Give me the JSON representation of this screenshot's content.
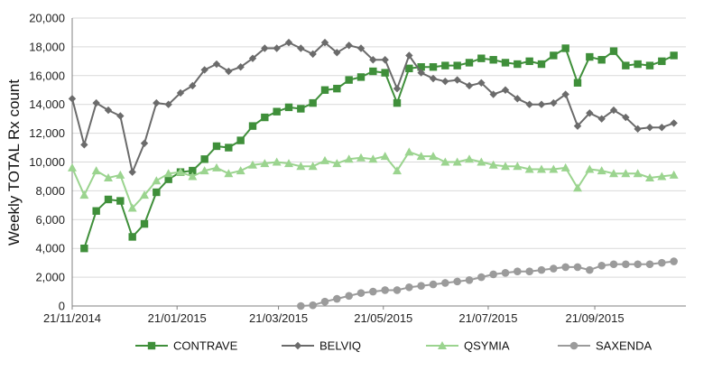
{
  "chart_data": {
    "type": "line",
    "xlabel": "",
    "ylabel": "Weekly TOTAL Rx count",
    "ylim": [
      0,
      20000
    ],
    "yticks": [
      "0",
      "2,000",
      "4,000",
      "6,000",
      "8,000",
      "10,000",
      "12,000",
      "14,000",
      "16,000",
      "18,000",
      "20,000"
    ],
    "xrange": [
      "2014-11-21",
      "2015-11-13"
    ],
    "xtick_labels": [
      {
        "date": "2014-11-21",
        "label": "21/11/2014"
      },
      {
        "date": "2015-01-21",
        "label": "21/01/2015"
      },
      {
        "date": "2015-03-21",
        "label": "21/03/2015"
      },
      {
        "date": "2015-05-21",
        "label": "21/05/2015"
      },
      {
        "date": "2015-07-21",
        "label": "21/07/2015"
      },
      {
        "date": "2015-09-21",
        "label": "21/09/2015"
      }
    ],
    "grid": "horizontal",
    "legend_position": "bottom",
    "series": [
      {
        "name": "CONTRAVE",
        "color": "#3f8f3a",
        "marker": "square",
        "points": [
          [
            "2014-11-28",
            4000
          ],
          [
            "2014-12-05",
            6600
          ],
          [
            "2014-12-12",
            7400
          ],
          [
            "2014-12-19",
            7300
          ],
          [
            "2014-12-26",
            4800
          ],
          [
            "2015-01-02",
            5700
          ],
          [
            "2015-01-09",
            7900
          ],
          [
            "2015-01-16",
            8800
          ],
          [
            "2015-01-23",
            9300
          ],
          [
            "2015-01-30",
            9400
          ],
          [
            "2015-02-06",
            10200
          ],
          [
            "2015-02-13",
            11100
          ],
          [
            "2015-02-20",
            11000
          ],
          [
            "2015-02-27",
            11500
          ],
          [
            "2015-03-06",
            12500
          ],
          [
            "2015-03-13",
            13100
          ],
          [
            "2015-03-20",
            13500
          ],
          [
            "2015-03-27",
            13800
          ],
          [
            "2015-04-03",
            13700
          ],
          [
            "2015-04-10",
            14100
          ],
          [
            "2015-04-17",
            15000
          ],
          [
            "2015-04-24",
            15100
          ],
          [
            "2015-05-01",
            15700
          ],
          [
            "2015-05-08",
            15900
          ],
          [
            "2015-05-15",
            16300
          ],
          [
            "2015-05-22",
            16200
          ],
          [
            "2015-05-29",
            14100
          ],
          [
            "2015-06-05",
            16500
          ],
          [
            "2015-06-12",
            16600
          ],
          [
            "2015-06-19",
            16600
          ],
          [
            "2015-06-26",
            16700
          ],
          [
            "2015-07-03",
            16700
          ],
          [
            "2015-07-10",
            16900
          ],
          [
            "2015-07-17",
            17200
          ],
          [
            "2015-07-24",
            17100
          ],
          [
            "2015-07-31",
            16900
          ],
          [
            "2015-08-07",
            16800
          ],
          [
            "2015-08-14",
            17000
          ],
          [
            "2015-08-21",
            16800
          ],
          [
            "2015-08-28",
            17400
          ],
          [
            "2015-09-04",
            17900
          ],
          [
            "2015-09-11",
            15500
          ],
          [
            "2015-09-18",
            17300
          ],
          [
            "2015-09-25",
            17100
          ],
          [
            "2015-10-02",
            17700
          ],
          [
            "2015-10-09",
            16700
          ],
          [
            "2015-10-16",
            16800
          ],
          [
            "2015-10-23",
            16700
          ],
          [
            "2015-10-30",
            17000
          ],
          [
            "2015-11-06",
            17400
          ]
        ]
      },
      {
        "name": "BELVIQ",
        "color": "#6b6b6b",
        "marker": "diamond",
        "points": [
          [
            "2014-11-21",
            14400
          ],
          [
            "2014-11-28",
            11200
          ],
          [
            "2014-12-05",
            14100
          ],
          [
            "2014-12-12",
            13600
          ],
          [
            "2014-12-19",
            13200
          ],
          [
            "2014-12-26",
            9300
          ],
          [
            "2015-01-02",
            11300
          ],
          [
            "2015-01-09",
            14100
          ],
          [
            "2015-01-16",
            14000
          ],
          [
            "2015-01-23",
            14800
          ],
          [
            "2015-01-30",
            15300
          ],
          [
            "2015-02-06",
            16400
          ],
          [
            "2015-02-13",
            16800
          ],
          [
            "2015-02-20",
            16300
          ],
          [
            "2015-02-27",
            16600
          ],
          [
            "2015-03-06",
            17200
          ],
          [
            "2015-03-13",
            17900
          ],
          [
            "2015-03-20",
            17900
          ],
          [
            "2015-03-27",
            18300
          ],
          [
            "2015-04-03",
            17900
          ],
          [
            "2015-04-10",
            17500
          ],
          [
            "2015-04-17",
            18300
          ],
          [
            "2015-04-24",
            17600
          ],
          [
            "2015-05-01",
            18100
          ],
          [
            "2015-05-08",
            17900
          ],
          [
            "2015-05-15",
            17100
          ],
          [
            "2015-05-22",
            17100
          ],
          [
            "2015-05-29",
            15100
          ],
          [
            "2015-06-05",
            17400
          ],
          [
            "2015-06-12",
            16200
          ],
          [
            "2015-06-19",
            15800
          ],
          [
            "2015-06-26",
            15600
          ],
          [
            "2015-07-03",
            15700
          ],
          [
            "2015-07-10",
            15300
          ],
          [
            "2015-07-17",
            15500
          ],
          [
            "2015-07-24",
            14700
          ],
          [
            "2015-07-31",
            15000
          ],
          [
            "2015-08-07",
            14400
          ],
          [
            "2015-08-14",
            14000
          ],
          [
            "2015-08-21",
            14000
          ],
          [
            "2015-08-28",
            14100
          ],
          [
            "2015-09-04",
            14700
          ],
          [
            "2015-09-11",
            12500
          ],
          [
            "2015-09-18",
            13400
          ],
          [
            "2015-09-25",
            13000
          ],
          [
            "2015-10-02",
            13600
          ],
          [
            "2015-10-09",
            13100
          ],
          [
            "2015-10-16",
            12300
          ],
          [
            "2015-10-23",
            12400
          ],
          [
            "2015-10-30",
            12400
          ],
          [
            "2015-11-06",
            12700
          ]
        ]
      },
      {
        "name": "QSYMIA",
        "color": "#9bd48f",
        "marker": "triangle",
        "points": [
          [
            "2014-11-21",
            9600
          ],
          [
            "2014-11-28",
            7700
          ],
          [
            "2014-12-05",
            9400
          ],
          [
            "2014-12-12",
            8900
          ],
          [
            "2014-12-19",
            9100
          ],
          [
            "2014-12-26",
            6800
          ],
          [
            "2015-01-02",
            7700
          ],
          [
            "2015-01-09",
            8700
          ],
          [
            "2015-01-16",
            9200
          ],
          [
            "2015-01-23",
            9300
          ],
          [
            "2015-01-30",
            9000
          ],
          [
            "2015-02-06",
            9400
          ],
          [
            "2015-02-13",
            9600
          ],
          [
            "2015-02-20",
            9200
          ],
          [
            "2015-02-27",
            9400
          ],
          [
            "2015-03-06",
            9800
          ],
          [
            "2015-03-13",
            9900
          ],
          [
            "2015-03-20",
            10000
          ],
          [
            "2015-03-27",
            9900
          ],
          [
            "2015-04-03",
            9700
          ],
          [
            "2015-04-10",
            9700
          ],
          [
            "2015-04-17",
            10100
          ],
          [
            "2015-04-24",
            9900
          ],
          [
            "2015-05-01",
            10200
          ],
          [
            "2015-05-08",
            10300
          ],
          [
            "2015-05-15",
            10200
          ],
          [
            "2015-05-22",
            10400
          ],
          [
            "2015-05-29",
            9400
          ],
          [
            "2015-06-05",
            10700
          ],
          [
            "2015-06-12",
            10400
          ],
          [
            "2015-06-19",
            10400
          ],
          [
            "2015-06-26",
            10000
          ],
          [
            "2015-07-03",
            10000
          ],
          [
            "2015-07-10",
            10200
          ],
          [
            "2015-07-17",
            10000
          ],
          [
            "2015-07-24",
            9800
          ],
          [
            "2015-07-31",
            9700
          ],
          [
            "2015-08-07",
            9700
          ],
          [
            "2015-08-14",
            9500
          ],
          [
            "2015-08-21",
            9500
          ],
          [
            "2015-08-28",
            9500
          ],
          [
            "2015-09-04",
            9600
          ],
          [
            "2015-09-11",
            8200
          ],
          [
            "2015-09-18",
            9500
          ],
          [
            "2015-09-25",
            9400
          ],
          [
            "2015-10-02",
            9200
          ],
          [
            "2015-10-09",
            9200
          ],
          [
            "2015-10-16",
            9200
          ],
          [
            "2015-10-23",
            8900
          ],
          [
            "2015-10-30",
            9000
          ],
          [
            "2015-11-06",
            9100
          ]
        ]
      },
      {
        "name": "SAXENDA",
        "color": "#9b9b9b",
        "marker": "circle",
        "points": [
          [
            "2015-04-03",
            0
          ],
          [
            "2015-04-10",
            50
          ],
          [
            "2015-04-17",
            300
          ],
          [
            "2015-04-24",
            500
          ],
          [
            "2015-05-01",
            700
          ],
          [
            "2015-05-08",
            900
          ],
          [
            "2015-05-15",
            1000
          ],
          [
            "2015-05-22",
            1100
          ],
          [
            "2015-05-29",
            1100
          ],
          [
            "2015-06-05",
            1300
          ],
          [
            "2015-06-12",
            1400
          ],
          [
            "2015-06-19",
            1500
          ],
          [
            "2015-06-26",
            1600
          ],
          [
            "2015-07-03",
            1700
          ],
          [
            "2015-07-10",
            1800
          ],
          [
            "2015-07-17",
            2000
          ],
          [
            "2015-07-24",
            2200
          ],
          [
            "2015-07-31",
            2300
          ],
          [
            "2015-08-07",
            2400
          ],
          [
            "2015-08-14",
            2400
          ],
          [
            "2015-08-21",
            2500
          ],
          [
            "2015-08-28",
            2600
          ],
          [
            "2015-09-04",
            2700
          ],
          [
            "2015-09-11",
            2700
          ],
          [
            "2015-09-18",
            2500
          ],
          [
            "2015-09-25",
            2800
          ],
          [
            "2015-10-02",
            2900
          ],
          [
            "2015-10-09",
            2900
          ],
          [
            "2015-10-16",
            2900
          ],
          [
            "2015-10-23",
            2900
          ],
          [
            "2015-10-30",
            3000
          ],
          [
            "2015-11-06",
            3100
          ]
        ]
      }
    ]
  }
}
